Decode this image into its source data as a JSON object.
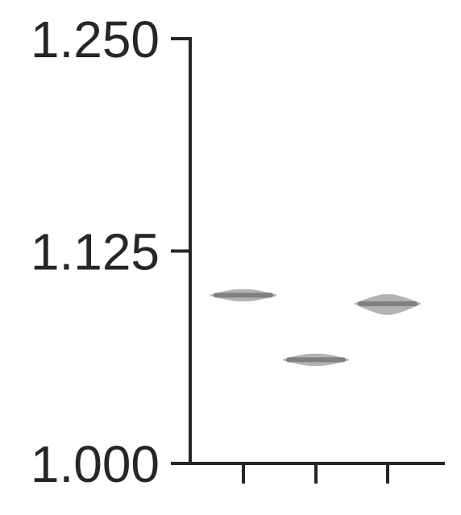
{
  "chart_data": {
    "type": "violin",
    "title": "",
    "xlabel": "",
    "ylabel": "",
    "ylim": [
      1.0,
      1.25
    ],
    "yticks": [
      {
        "value": 1.0,
        "label": "1.000"
      },
      {
        "value": 1.125,
        "label": "1.125"
      },
      {
        "value": 1.25,
        "label": "1.250"
      }
    ],
    "categories": [
      "",
      "",
      ""
    ],
    "series": [
      {
        "median": 1.099,
        "min": 1.096,
        "max": 1.102
      },
      {
        "median": 1.061,
        "min": 1.058,
        "max": 1.064
      },
      {
        "median": 1.094,
        "min": 1.088,
        "max": 1.099
      }
    ],
    "grid": false,
    "colors": {
      "axis": "#262626",
      "violin_fill": "#b3b3b3",
      "violin_core": "#808080",
      "tick_text": "#262626"
    }
  }
}
